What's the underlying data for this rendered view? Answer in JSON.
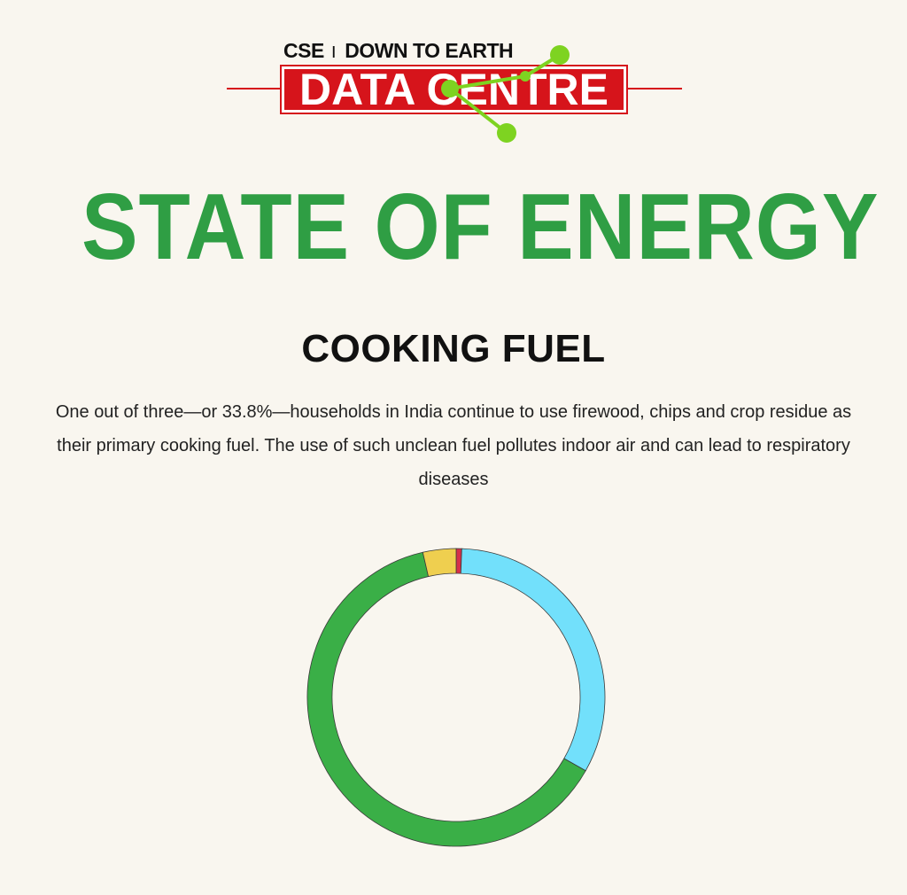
{
  "header": {
    "logo_top": "CSE",
    "logo_top_right": "DOWN TO EARTH",
    "logo_main": "DATA CENTRE",
    "brand_red": "#d6141b",
    "brand_green": "#7ed321"
  },
  "page": {
    "title": "STATE OF ENERGY",
    "title_color": "#2f9e44"
  },
  "section": {
    "title": "COOKING FUEL",
    "description": "One out of three—or 33.8%—households in India continue to use firewood, chips and crop residue as their primary cooking fuel. The use of such unclean fuel pollutes indoor air and can lead to respiratory diseases"
  },
  "chart_data": {
    "type": "pie",
    "donut": true,
    "slices": [
      {
        "value": 0.6,
        "color": "#d6304a"
      },
      {
        "value": 32.6,
        "color": "#72e0fb"
      },
      {
        "value": 63.2,
        "color": "#3aaf47"
      },
      {
        "value": 3.6,
        "color": "#efcf4f"
      }
    ]
  }
}
